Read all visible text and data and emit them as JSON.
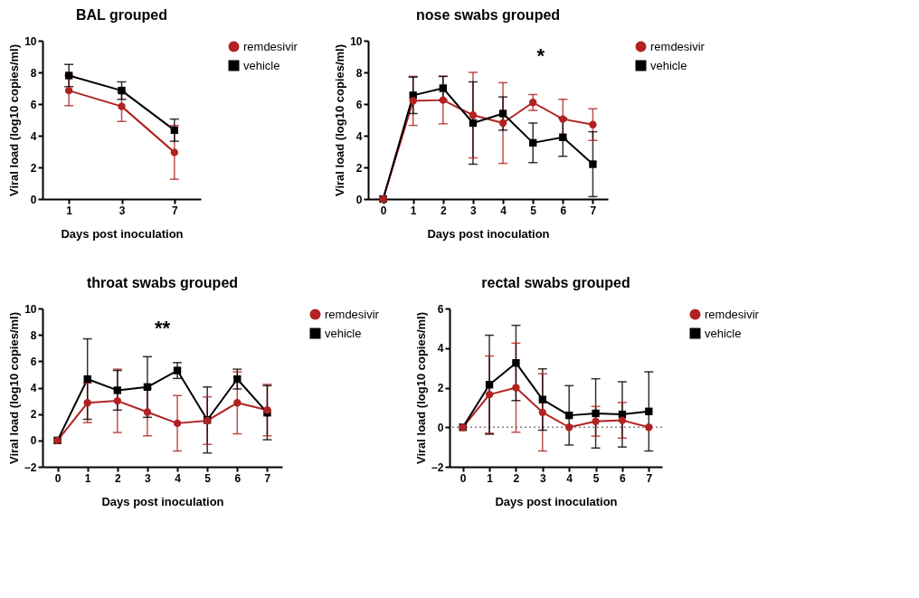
{
  "chart_data": [
    {
      "type": "line",
      "title": "BAL grouped",
      "xlabel": "Days post inoculation",
      "ylabel": "Viral load (log10 copies/ml)",
      "categories": [
        "1",
        "3",
        "7"
      ],
      "ylim": [
        0,
        10
      ],
      "yticks": [
        0,
        2,
        4,
        6,
        8,
        10
      ],
      "grid": false,
      "legend": "top right",
      "series": [
        {
          "name": "remdesivir",
          "color": "#b22222",
          "marker": "circle",
          "values": [
            6.85,
            5.85,
            2.95
          ],
          "errors": [
            0.95,
            0.95,
            1.7
          ]
        },
        {
          "name": "vehicle",
          "color": "#000000",
          "marker": "square",
          "values": [
            7.8,
            6.85,
            4.35
          ],
          "errors": [
            0.7,
            0.55,
            0.7
          ]
        }
      ]
    },
    {
      "type": "line",
      "title": "nose swabs grouped",
      "xlabel": "Days post inoculation",
      "ylabel": "Viral load (log10 copies/ml)",
      "categories": [
        "0",
        "1",
        "2",
        "3",
        "4",
        "5",
        "6",
        "7"
      ],
      "ylim": [
        0,
        10
      ],
      "yticks": [
        0,
        2,
        4,
        6,
        8,
        10
      ],
      "grid": false,
      "legend": "top right",
      "annotations": [
        "*"
      ],
      "series": [
        {
          "name": "remdesivir",
          "color": "#b22222",
          "marker": "circle",
          "values": [
            0,
            6.2,
            6.25,
            5.3,
            4.8,
            6.1,
            5.05,
            4.7
          ],
          "errors": [
            null,
            1.55,
            1.5,
            2.7,
            2.55,
            0.5,
            1.25,
            1.0
          ]
        },
        {
          "name": "vehicle",
          "color": "#000000",
          "marker": "square",
          "values": [
            0,
            6.55,
            7.0,
            4.8,
            5.4,
            3.55,
            3.9,
            2.2
          ],
          "errors": [
            null,
            1.15,
            0.75,
            2.6,
            1.05,
            1.25,
            1.2,
            2.05
          ]
        }
      ]
    },
    {
      "type": "line",
      "title": "throat swabs grouped",
      "xlabel": "Days post inoculation",
      "ylabel": "Viral load (log10 copies/ml)",
      "categories": [
        "0",
        "1",
        "2",
        "3",
        "4",
        "5",
        "6",
        "7"
      ],
      "ylim": [
        -2,
        10
      ],
      "yticks": [
        -2,
        0,
        2,
        4,
        6,
        8,
        10
      ],
      "grid": false,
      "legend": "top right",
      "annotations": [
        "**"
      ],
      "series": [
        {
          "name": "remdesivir",
          "color": "#b22222",
          "marker": "circle",
          "values": [
            0,
            2.85,
            3.0,
            2.15,
            1.3,
            1.5,
            2.85,
            2.3
          ],
          "errors": [
            null,
            1.5,
            2.4,
            1.8,
            2.1,
            1.8,
            2.35,
            1.95
          ]
        },
        {
          "name": "vehicle",
          "color": "#000000",
          "marker": "square",
          "values": [
            0,
            4.65,
            3.8,
            4.05,
            5.3,
            1.55,
            4.65,
            2.1
          ],
          "errors": [
            null,
            3.05,
            1.5,
            2.3,
            0.6,
            2.5,
            0.75,
            2.05
          ]
        }
      ]
    },
    {
      "type": "line",
      "title": "rectal swabs grouped",
      "xlabel": "Days post inoculation",
      "ylabel": "Viral load (log10 copies/ml)",
      "categories": [
        "0",
        "1",
        "2",
        "3",
        "4",
        "5",
        "6",
        "7"
      ],
      "ylim": [
        -2,
        6
      ],
      "yticks": [
        -2,
        0,
        2,
        4,
        6
      ],
      "grid": false,
      "legend": "top right",
      "ref_lines": [
        {
          "axis": "y",
          "value": 0,
          "color": "#808080",
          "line_style": "dotted"
        }
      ],
      "series": [
        {
          "name": "remdesivir",
          "color": "#b22222",
          "marker": "circle",
          "values": [
            0,
            1.65,
            2.0,
            0.75,
            0,
            0.3,
            0.35,
            0
          ],
          "errors": [
            null,
            1.95,
            2.25,
            1.95,
            null,
            0.75,
            0.9,
            null
          ]
        },
        {
          "name": "vehicle",
          "color": "#000000",
          "marker": "square",
          "values": [
            0,
            2.15,
            3.25,
            1.4,
            0.6,
            0.7,
            0.65,
            0.8
          ],
          "errors": [
            null,
            2.5,
            1.9,
            1.55,
            1.5,
            1.75,
            1.65,
            2.0
          ]
        }
      ]
    }
  ]
}
